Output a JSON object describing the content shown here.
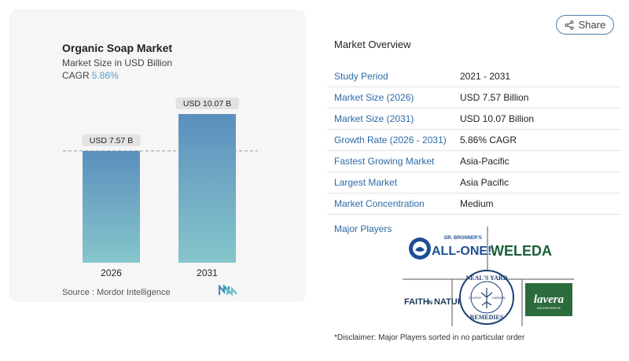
{
  "chart": {
    "title": "Organic Soap Market",
    "subtitle": "Market Size in USD Billion",
    "cagr_label": "CAGR",
    "cagr_value": "5.86%",
    "source": "Source :  Mordor Intelligence"
  },
  "chart_data": {
    "type": "bar",
    "categories": [
      "2026",
      "2031"
    ],
    "values": [
      7.57,
      10.07
    ],
    "data_labels": [
      "USD 7.57 B",
      "USD 10.07 B"
    ],
    "title": "Organic Soap Market",
    "ylabel": "Market Size in USD Billion",
    "ylim": [
      0,
      10.07
    ],
    "grid": false,
    "colors": {
      "bar_top": "#5b8fbd",
      "bar_bottom": "#86c6cb",
      "label_bg": "#e3e3e3"
    }
  },
  "share": {
    "label": "Share",
    "icon": "share-icon"
  },
  "overview": {
    "title": "Market Overview",
    "rows": [
      {
        "key": "Study Period",
        "value": "2021 - 2031"
      },
      {
        "key": "Market Size (2026)",
        "value": "USD 7.57 Billion"
      },
      {
        "key": "Market Size (2031)",
        "value": "USD 10.07 Billion"
      },
      {
        "key": "Growth Rate (2026 - 2031)",
        "value": "5.86% CAGR"
      },
      {
        "key": "Fastest Growing Market",
        "value": "Asia-Pacific"
      },
      {
        "key": "Largest Market",
        "value": "Asia Pacific"
      },
      {
        "key": "Market Concentration",
        "value": "Medium"
      }
    ]
  },
  "players": {
    "title": "Major Players",
    "logos": {
      "bronner_top": "DR. BRONNER'S",
      "bronner_main": "ALL-ONE!",
      "weleda": "WELEDA",
      "faith": "FAITH",
      "faith_in": "IN",
      "faith_nature": "NATURE",
      "nealsyard_top": "NEAL'S YARD",
      "nealsyard_bottom": "REMEDIES",
      "nealsyard_covent": "COVENT",
      "nealsyard_garden": "GARDEN",
      "lavera": "lavera",
      "lavera_sub": "NATURKOSMETIK"
    }
  },
  "disclaimer": "*Disclaimer: Major Players sorted in no particular order",
  "colors": {
    "accent": "#2e6aa5",
    "teal": "#5a9bc0",
    "weleda_green": "#1f5e3a",
    "bronner_blue": "#1d4f95",
    "lavera_green": "#2c6b3c"
  }
}
